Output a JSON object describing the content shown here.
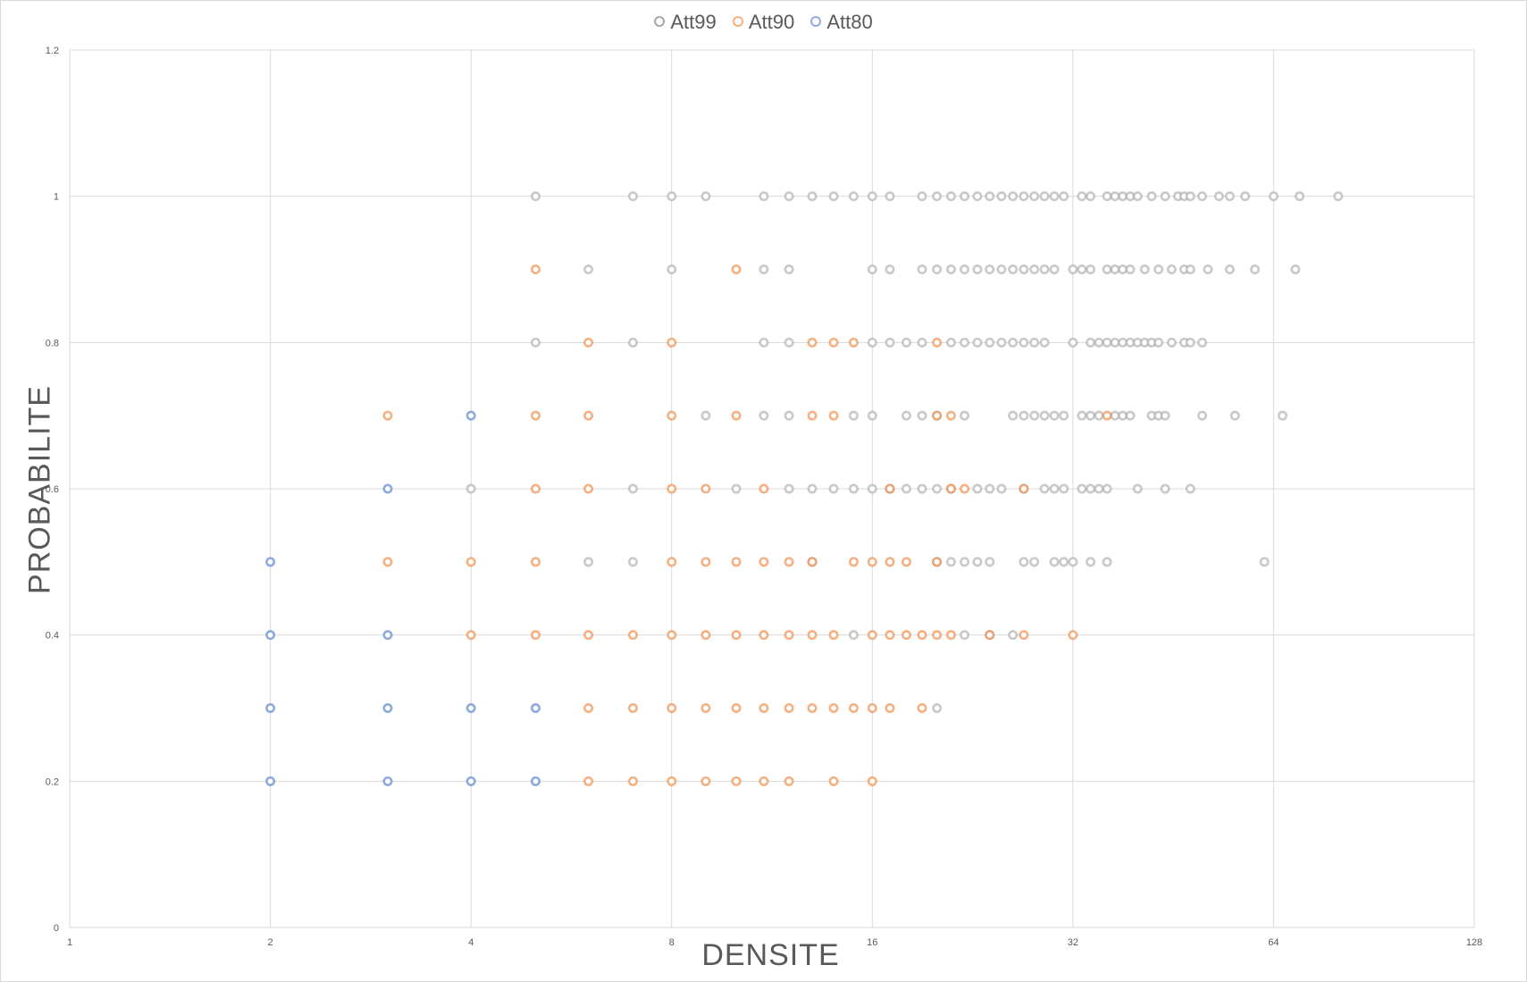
{
  "chart_data": {
    "type": "scatter",
    "xlabel": "DENSITE",
    "ylabel": "PROBABILITE",
    "x_scale": "log2",
    "xlim": [
      1,
      128
    ],
    "ylim": [
      0,
      1.2
    ],
    "x_ticks": [
      "1",
      "2",
      "4",
      "8",
      "16",
      "32",
      "64",
      "128"
    ],
    "y_ticks": [
      "0",
      "0.2",
      "0.4",
      "0.6",
      "0.8",
      "1",
      "1.2"
    ],
    "grid": true,
    "legend_position": "top",
    "series": [
      {
        "name": "Att99",
        "color": "#a5a5a5",
        "points": [
          [
            5,
            1
          ],
          [
            7,
            1
          ],
          [
            8,
            1
          ],
          [
            9,
            1
          ],
          [
            11,
            1
          ],
          [
            12,
            1
          ],
          [
            13,
            1
          ],
          [
            14,
            1
          ],
          [
            15,
            1
          ],
          [
            16,
            1
          ],
          [
            17,
            1
          ],
          [
            19,
            1
          ],
          [
            20,
            1
          ],
          [
            21,
            1
          ],
          [
            22,
            1
          ],
          [
            23,
            1
          ],
          [
            24,
            1
          ],
          [
            25,
            1
          ],
          [
            26,
            1
          ],
          [
            27,
            1
          ],
          [
            28,
            1
          ],
          [
            29,
            1
          ],
          [
            30,
            1
          ],
          [
            31,
            1
          ],
          [
            33,
            1
          ],
          [
            34,
            1
          ],
          [
            36,
            1
          ],
          [
            37,
            1
          ],
          [
            38,
            1
          ],
          [
            39,
            1
          ],
          [
            40,
            1
          ],
          [
            42,
            1
          ],
          [
            44,
            1
          ],
          [
            46,
            1
          ],
          [
            47,
            1
          ],
          [
            48,
            1
          ],
          [
            50,
            1
          ],
          [
            53,
            1
          ],
          [
            55,
            1
          ],
          [
            58,
            1
          ],
          [
            64,
            1
          ],
          [
            70,
            1
          ],
          [
            80,
            1
          ],
          [
            6,
            0.9
          ],
          [
            8,
            0.9
          ],
          [
            11,
            0.9
          ],
          [
            12,
            0.9
          ],
          [
            16,
            0.9
          ],
          [
            17,
            0.9
          ],
          [
            19,
            0.9
          ],
          [
            20,
            0.9
          ],
          [
            21,
            0.9
          ],
          [
            22,
            0.9
          ],
          [
            23,
            0.9
          ],
          [
            24,
            0.9
          ],
          [
            25,
            0.9
          ],
          [
            26,
            0.9
          ],
          [
            27,
            0.9
          ],
          [
            28,
            0.9
          ],
          [
            29,
            0.9
          ],
          [
            30,
            0.9
          ],
          [
            32,
            0.9
          ],
          [
            33,
            0.9
          ],
          [
            34,
            0.9
          ],
          [
            36,
            0.9
          ],
          [
            37,
            0.9
          ],
          [
            38,
            0.9
          ],
          [
            39,
            0.9
          ],
          [
            41,
            0.9
          ],
          [
            43,
            0.9
          ],
          [
            45,
            0.9
          ],
          [
            47,
            0.9
          ],
          [
            48,
            0.9
          ],
          [
            51,
            0.9
          ],
          [
            55,
            0.9
          ],
          [
            60,
            0.9
          ],
          [
            69,
            0.9
          ],
          [
            5,
            0.8
          ],
          [
            7,
            0.8
          ],
          [
            11,
            0.8
          ],
          [
            12,
            0.8
          ],
          [
            16,
            0.8
          ],
          [
            17,
            0.8
          ],
          [
            18,
            0.8
          ],
          [
            19,
            0.8
          ],
          [
            21,
            0.8
          ],
          [
            22,
            0.8
          ],
          [
            23,
            0.8
          ],
          [
            24,
            0.8
          ],
          [
            25,
            0.8
          ],
          [
            26,
            0.8
          ],
          [
            27,
            0.8
          ],
          [
            28,
            0.8
          ],
          [
            29,
            0.8
          ],
          [
            32,
            0.8
          ],
          [
            34,
            0.8
          ],
          [
            35,
            0.8
          ],
          [
            36,
            0.8
          ],
          [
            37,
            0.8
          ],
          [
            38,
            0.8
          ],
          [
            39,
            0.8
          ],
          [
            40,
            0.8
          ],
          [
            41,
            0.8
          ],
          [
            42,
            0.8
          ],
          [
            43,
            0.8
          ],
          [
            45,
            0.8
          ],
          [
            47,
            0.8
          ],
          [
            48,
            0.8
          ],
          [
            50,
            0.8
          ],
          [
            9,
            0.7
          ],
          [
            11,
            0.7
          ],
          [
            12,
            0.7
          ],
          [
            15,
            0.7
          ],
          [
            16,
            0.7
          ],
          [
            18,
            0.7
          ],
          [
            19,
            0.7
          ],
          [
            20,
            0.7
          ],
          [
            22,
            0.7
          ],
          [
            26,
            0.7
          ],
          [
            27,
            0.7
          ],
          [
            28,
            0.7
          ],
          [
            29,
            0.7
          ],
          [
            30,
            0.7
          ],
          [
            31,
            0.7
          ],
          [
            33,
            0.7
          ],
          [
            34,
            0.7
          ],
          [
            35,
            0.7
          ],
          [
            37,
            0.7
          ],
          [
            38,
            0.7
          ],
          [
            39,
            0.7
          ],
          [
            42,
            0.7
          ],
          [
            43,
            0.7
          ],
          [
            44,
            0.7
          ],
          [
            50,
            0.7
          ],
          [
            56,
            0.7
          ],
          [
            66,
            0.7
          ],
          [
            4,
            0.6
          ],
          [
            7,
            0.6
          ],
          [
            10,
            0.6
          ],
          [
            12,
            0.6
          ],
          [
            13,
            0.6
          ],
          [
            14,
            0.6
          ],
          [
            15,
            0.6
          ],
          [
            16,
            0.6
          ],
          [
            17,
            0.6
          ],
          [
            18,
            0.6
          ],
          [
            19,
            0.6
          ],
          [
            20,
            0.6
          ],
          [
            21,
            0.6
          ],
          [
            23,
            0.6
          ],
          [
            24,
            0.6
          ],
          [
            25,
            0.6
          ],
          [
            27,
            0.6
          ],
          [
            29,
            0.6
          ],
          [
            30,
            0.6
          ],
          [
            31,
            0.6
          ],
          [
            33,
            0.6
          ],
          [
            34,
            0.6
          ],
          [
            35,
            0.6
          ],
          [
            36,
            0.6
          ],
          [
            40,
            0.6
          ],
          [
            44,
            0.6
          ],
          [
            48,
            0.6
          ],
          [
            6,
            0.5
          ],
          [
            7,
            0.5
          ],
          [
            13,
            0.5
          ],
          [
            20,
            0.5
          ],
          [
            21,
            0.5
          ],
          [
            22,
            0.5
          ],
          [
            23,
            0.5
          ],
          [
            24,
            0.5
          ],
          [
            27,
            0.5
          ],
          [
            28,
            0.5
          ],
          [
            30,
            0.5
          ],
          [
            31,
            0.5
          ],
          [
            32,
            0.5
          ],
          [
            34,
            0.5
          ],
          [
            36,
            0.5
          ],
          [
            62,
            0.5
          ],
          [
            15,
            0.4
          ],
          [
            22,
            0.4
          ],
          [
            24,
            0.4
          ],
          [
            26,
            0.4
          ],
          [
            20,
            0.3
          ]
        ]
      },
      {
        "name": "Att90",
        "color": "#ed7d31",
        "points": [
          [
            5,
            0.9
          ],
          [
            10,
            0.9
          ],
          [
            6,
            0.8
          ],
          [
            8,
            0.8
          ],
          [
            13,
            0.8
          ],
          [
            14,
            0.8
          ],
          [
            15,
            0.8
          ],
          [
            20,
            0.8
          ],
          [
            3,
            0.7
          ],
          [
            5,
            0.7
          ],
          [
            6,
            0.7
          ],
          [
            8,
            0.7
          ],
          [
            10,
            0.7
          ],
          [
            13,
            0.7
          ],
          [
            14,
            0.7
          ],
          [
            20,
            0.7
          ],
          [
            21,
            0.7
          ],
          [
            36,
            0.7
          ],
          [
            5,
            0.6
          ],
          [
            6,
            0.6
          ],
          [
            8,
            0.6
          ],
          [
            9,
            0.6
          ],
          [
            11,
            0.6
          ],
          [
            17,
            0.6
          ],
          [
            21,
            0.6
          ],
          [
            22,
            0.6
          ],
          [
            27,
            0.6
          ],
          [
            3,
            0.5
          ],
          [
            4,
            0.5
          ],
          [
            5,
            0.5
          ],
          [
            8,
            0.5
          ],
          [
            9,
            0.5
          ],
          [
            10,
            0.5
          ],
          [
            11,
            0.5
          ],
          [
            12,
            0.5
          ],
          [
            13,
            0.5
          ],
          [
            15,
            0.5
          ],
          [
            16,
            0.5
          ],
          [
            17,
            0.5
          ],
          [
            18,
            0.5
          ],
          [
            20,
            0.5
          ],
          [
            4,
            0.4
          ],
          [
            5,
            0.4
          ],
          [
            6,
            0.4
          ],
          [
            7,
            0.4
          ],
          [
            8,
            0.4
          ],
          [
            9,
            0.4
          ],
          [
            10,
            0.4
          ],
          [
            11,
            0.4
          ],
          [
            12,
            0.4
          ],
          [
            13,
            0.4
          ],
          [
            14,
            0.4
          ],
          [
            16,
            0.4
          ],
          [
            17,
            0.4
          ],
          [
            18,
            0.4
          ],
          [
            19,
            0.4
          ],
          [
            20,
            0.4
          ],
          [
            21,
            0.4
          ],
          [
            24,
            0.4
          ],
          [
            27,
            0.4
          ],
          [
            32,
            0.4
          ],
          [
            6,
            0.3
          ],
          [
            7,
            0.3
          ],
          [
            8,
            0.3
          ],
          [
            9,
            0.3
          ],
          [
            10,
            0.3
          ],
          [
            11,
            0.3
          ],
          [
            12,
            0.3
          ],
          [
            13,
            0.3
          ],
          [
            14,
            0.3
          ],
          [
            15,
            0.3
          ],
          [
            16,
            0.3
          ],
          [
            17,
            0.3
          ],
          [
            19,
            0.3
          ],
          [
            6,
            0.2
          ],
          [
            7,
            0.2
          ],
          [
            8,
            0.2
          ],
          [
            9,
            0.2
          ],
          [
            10,
            0.2
          ],
          [
            11,
            0.2
          ],
          [
            12,
            0.2
          ],
          [
            14,
            0.2
          ],
          [
            16,
            0.2
          ]
        ]
      },
      {
        "name": "Att80",
        "color": "#4472c4",
        "points": [
          [
            4,
            0.7
          ],
          [
            3,
            0.6
          ],
          [
            2,
            0.5
          ],
          [
            2,
            0.4
          ],
          [
            3,
            0.4
          ],
          [
            2,
            0.3
          ],
          [
            3,
            0.3
          ],
          [
            4,
            0.3
          ],
          [
            5,
            0.3
          ],
          [
            2,
            0.2
          ],
          [
            3,
            0.2
          ],
          [
            4,
            0.2
          ],
          [
            5,
            0.2
          ]
        ]
      }
    ]
  }
}
